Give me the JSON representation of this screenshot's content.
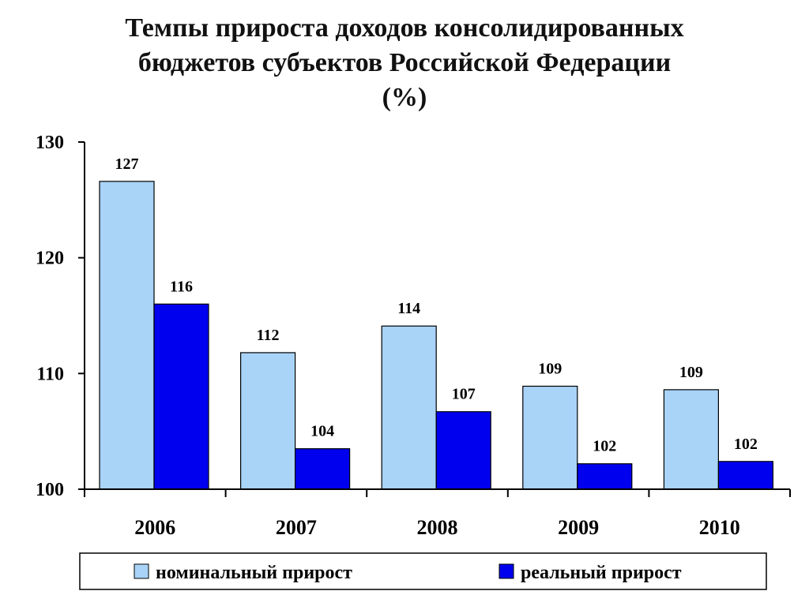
{
  "chart_data": {
    "type": "bar",
    "title_lines": [
      "Темпы прироста доходов консолидированных",
      "бюджетов субъектов Российской Федерации",
      "(%)"
    ],
    "categories": [
      "2006",
      "2007",
      "2008",
      "2009",
      "2010"
    ],
    "series": [
      {
        "name": "номинальный прирост",
        "values": [
          126.6,
          111.8,
          114.1,
          108.9,
          108.6
        ],
        "labels": [
          "127",
          "112",
          "114",
          "109",
          "109"
        ],
        "color": "#a9d3f7"
      },
      {
        "name": "реальный прирост",
        "values": [
          116.0,
          103.5,
          106.7,
          102.2,
          102.4
        ],
        "labels": [
          "116",
          "104",
          "107",
          "102",
          "102"
        ],
        "color": "#0000ee"
      }
    ],
    "ylim": [
      100,
      130
    ],
    "yticks": [
      "100",
      "110",
      "120",
      "130"
    ],
    "grid": false,
    "legend_position": "bottom"
  }
}
